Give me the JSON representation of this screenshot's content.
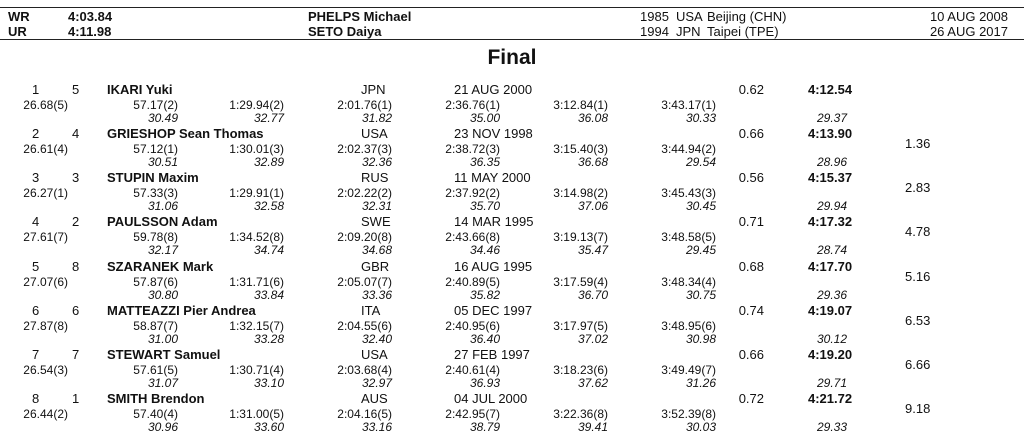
{
  "records": [
    {
      "code": "WR",
      "time": "4:03.84",
      "name": "PHELPS Michael",
      "year": "1985",
      "nat": "USA",
      "place": "Beijing (CHN)",
      "date": "10 AUG 2008"
    },
    {
      "code": "UR",
      "time": "4:11.98",
      "name": "SETO Daiya",
      "year": "1994",
      "nat": "JPN",
      "place": "Taipei (TPE)",
      "date": "26 AUG 2017"
    }
  ],
  "title": "Final",
  "athletes": [
    {
      "rank": "1",
      "lane": "5",
      "name": "IKARI Yuki",
      "nat": "JPN",
      "dob": "21 AUG 2000",
      "rt": "0.62",
      "final": "4:12.54",
      "behind": "",
      "splits": [
        "26.68(5)",
        "57.17(2)",
        "1:29.94(2)",
        "2:01.76(1)",
        "2:36.76(1)",
        "3:12.84(1)",
        "3:43.17(1)"
      ],
      "laps": [
        "30.49",
        "32.77",
        "31.82",
        "35.00",
        "36.08",
        "30.33",
        "29.37"
      ]
    },
    {
      "rank": "2",
      "lane": "4",
      "name": "GRIESHOP Sean Thomas",
      "nat": "USA",
      "dob": "23 NOV 1998",
      "rt": "0.66",
      "final": "4:13.90",
      "behind": "1.36",
      "splits": [
        "26.61(4)",
        "57.12(1)",
        "1:30.01(3)",
        "2:02.37(3)",
        "2:38.72(3)",
        "3:15.40(3)",
        "3:44.94(2)"
      ],
      "laps": [
        "30.51",
        "32.89",
        "32.36",
        "36.35",
        "36.68",
        "29.54",
        "28.96"
      ]
    },
    {
      "rank": "3",
      "lane": "3",
      "name": "STUPIN Maxim",
      "nat": "RUS",
      "dob": "11 MAY 2000",
      "rt": "0.56",
      "final": "4:15.37",
      "behind": "2.83",
      "splits": [
        "26.27(1)",
        "57.33(3)",
        "1:29.91(1)",
        "2:02.22(2)",
        "2:37.92(2)",
        "3:14.98(2)",
        "3:45.43(3)"
      ],
      "laps": [
        "31.06",
        "32.58",
        "32.31",
        "35.70",
        "37.06",
        "30.45",
        "29.94"
      ]
    },
    {
      "rank": "4",
      "lane": "2",
      "name": "PAULSSON Adam",
      "nat": "SWE",
      "dob": "14 MAR 1995",
      "rt": "0.71",
      "final": "4:17.32",
      "behind": "4.78",
      "splits": [
        "27.61(7)",
        "59.78(8)",
        "1:34.52(8)",
        "2:09.20(8)",
        "2:43.66(8)",
        "3:19.13(7)",
        "3:48.58(5)"
      ],
      "laps": [
        "32.17",
        "34.74",
        "34.68",
        "34.46",
        "35.47",
        "29.45",
        "28.74"
      ]
    },
    {
      "rank": "5",
      "lane": "8",
      "name": "SZARANEK Mark",
      "nat": "GBR",
      "dob": "16 AUG 1995",
      "rt": "0.68",
      "final": "4:17.70",
      "behind": "5.16",
      "splits": [
        "27.07(6)",
        "57.87(6)",
        "1:31.71(6)",
        "2:05.07(7)",
        "2:40.89(5)",
        "3:17.59(4)",
        "3:48.34(4)"
      ],
      "laps": [
        "30.80",
        "33.84",
        "33.36",
        "35.82",
        "36.70",
        "30.75",
        "29.36"
      ]
    },
    {
      "rank": "6",
      "lane": "6",
      "name": "MATTEAZZI Pier Andrea",
      "nat": "ITA",
      "dob": "05 DEC 1997",
      "rt": "0.74",
      "final": "4:19.07",
      "behind": "6.53",
      "splits": [
        "27.87(8)",
        "58.87(7)",
        "1:32.15(7)",
        "2:04.55(6)",
        "2:40.95(6)",
        "3:17.97(5)",
        "3:48.95(6)"
      ],
      "laps": [
        "31.00",
        "33.28",
        "32.40",
        "36.40",
        "37.02",
        "30.98",
        "30.12"
      ]
    },
    {
      "rank": "7",
      "lane": "7",
      "name": "STEWART Samuel",
      "nat": "USA",
      "dob": "27 FEB 1997",
      "rt": "0.66",
      "final": "4:19.20",
      "behind": "6.66",
      "splits": [
        "26.54(3)",
        "57.61(5)",
        "1:30.71(4)",
        "2:03.68(4)",
        "2:40.61(4)",
        "3:18.23(6)",
        "3:49.49(7)"
      ],
      "laps": [
        "31.07",
        "33.10",
        "32.97",
        "36.93",
        "37.62",
        "31.26",
        "29.71"
      ]
    },
    {
      "rank": "8",
      "lane": "1",
      "name": "SMITH Brendon",
      "nat": "AUS",
      "dob": "04 JUL 2000",
      "rt": "0.72",
      "final": "4:21.72",
      "behind": "9.18",
      "splits": [
        "26.44(2)",
        "57.40(4)",
        "1:31.00(5)",
        "2:04.16(5)",
        "2:42.95(7)",
        "3:22.36(8)",
        "3:52.39(8)"
      ],
      "laps": [
        "30.96",
        "33.60",
        "33.16",
        "38.79",
        "39.41",
        "30.03",
        "29.33"
      ]
    }
  ]
}
